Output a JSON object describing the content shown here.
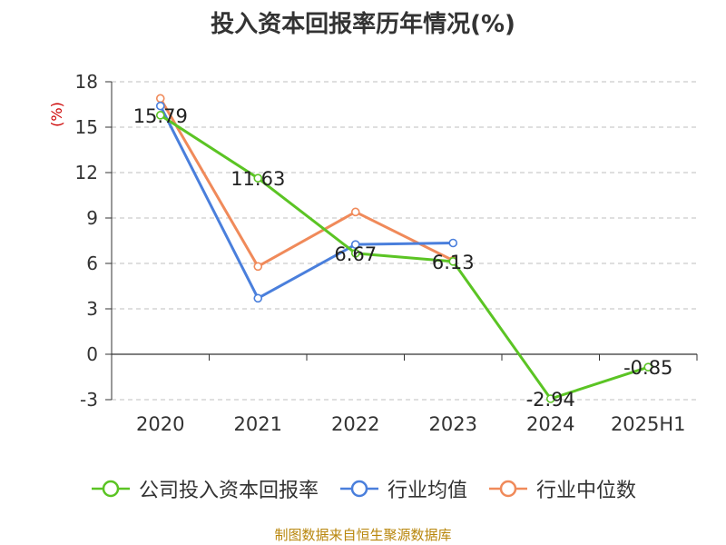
{
  "title": "投入资本回报率历年情况(%)",
  "source": "制图数据来自恒生聚源数据库",
  "colors": {
    "company": "#5bc424",
    "industry_avg": "#4a7fdc",
    "industry_median": "#f08a5a",
    "grid": "#cccccc",
    "axis": "#333333",
    "unit": "#cc0000"
  },
  "chart_data": {
    "type": "line",
    "title": "投入资本回报率历年情况(%)",
    "xlabel": "",
    "ylabel": "(%)",
    "ylim": [
      -3,
      18
    ],
    "yticks": [
      18,
      15,
      12,
      9,
      6,
      3,
      0,
      -3
    ],
    "categories": [
      "2020",
      "2021",
      "2022",
      "2023",
      "2024",
      "2025H1"
    ],
    "grid": true,
    "legend_position": "bottom",
    "series": [
      {
        "name": "公司投入资本回报率",
        "color_key": "company",
        "values": [
          15.79,
          11.63,
          6.67,
          6.13,
          -2.94,
          -0.85
        ],
        "labels": [
          "15.79",
          "11.63",
          "6.67",
          "6.13",
          "-2.94",
          "-0.85"
        ]
      },
      {
        "name": "行业均值",
        "color_key": "industry_avg",
        "values": [
          16.4,
          3.7,
          7.25,
          7.35,
          null,
          null
        ]
      },
      {
        "name": "行业中位数",
        "color_key": "industry_median",
        "values": [
          16.9,
          5.8,
          9.4,
          6.2,
          null,
          null
        ]
      }
    ]
  }
}
